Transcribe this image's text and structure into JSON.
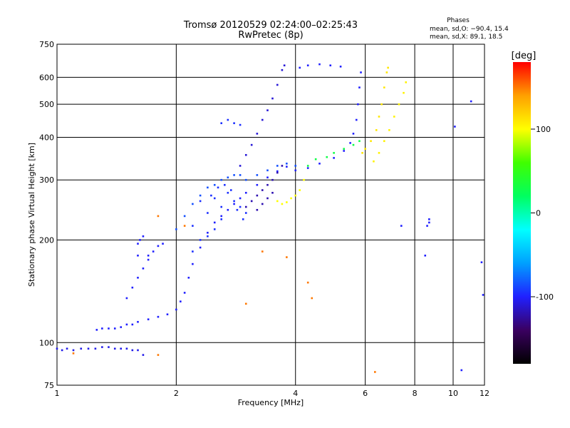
{
  "chart_data": {
    "type": "scatter",
    "title": "Tromsø 20120529 02:24:00–02:25:43",
    "subtitle": "RwPretec (8p)",
    "xlabel": "Frequency [MHz]",
    "ylabel": "Stationary phase Virtual Height [km]",
    "x_scale": "log",
    "y_scale": "log",
    "xlim": [
      1,
      12
    ],
    "ylim": [
      75,
      750
    ],
    "x_ticks": [
      1,
      2,
      4,
      6,
      8,
      10,
      12
    ],
    "y_ticks": [
      75,
      100,
      200,
      300,
      400,
      500,
      600,
      750
    ],
    "grid": true,
    "phases_header": "Phases",
    "phases_lines": [
      "mean, sd,O: −90.4, 15.4",
      "mean, sd,X:  89.1, 18.5"
    ],
    "colorbar": {
      "label": "[deg]",
      "range": [
        -180,
        180
      ],
      "ticks": [
        100,
        0,
        -100
      ],
      "colors": [
        "#000000",
        "#3a0060",
        "#2020ff",
        "#00a0ff",
        "#00ffff",
        "#00ff60",
        "#40ff00",
        "#ffff00",
        "#ffa000",
        "#ff0000"
      ]
    },
    "series": [
      {
        "values": [
          [
            1.0,
            96
          ],
          [
            1.03,
            95
          ],
          [
            1.06,
            96
          ],
          [
            1.1,
            95
          ],
          [
            1.15,
            96
          ],
          [
            1.2,
            96
          ],
          [
            1.25,
            96
          ],
          [
            1.3,
            97
          ],
          [
            1.35,
            97
          ],
          [
            1.4,
            96
          ],
          [
            1.45,
            96
          ],
          [
            1.5,
            96
          ],
          [
            1.55,
            95
          ],
          [
            1.6,
            95
          ],
          [
            1.65,
            92
          ]
        ],
        "phase": -105
      },
      {
        "values": [
          [
            1.26,
            109
          ],
          [
            1.3,
            110
          ],
          [
            1.35,
            110
          ],
          [
            1.4,
            110
          ],
          [
            1.45,
            111
          ],
          [
            1.5,
            113
          ],
          [
            1.55,
            113
          ],
          [
            1.6,
            115
          ],
          [
            1.7,
            117
          ],
          [
            1.8,
            119
          ],
          [
            1.9,
            121
          ],
          [
            2.0,
            125
          ],
          [
            2.05,
            132
          ],
          [
            2.1,
            140
          ],
          [
            2.15,
            155
          ],
          [
            2.2,
            170
          ],
          [
            2.3,
            190
          ],
          [
            2.4,
            210
          ],
          [
            2.5,
            225
          ],
          [
            2.6,
            235
          ],
          [
            2.7,
            245
          ],
          [
            2.8,
            255
          ],
          [
            2.9,
            265
          ],
          [
            3.0,
            275
          ],
          [
            3.2,
            290
          ],
          [
            3.4,
            305
          ],
          [
            3.6,
            318
          ],
          [
            3.8,
            328
          ],
          [
            4.0,
            320
          ],
          [
            4.3,
            325
          ],
          [
            4.6,
            335
          ],
          [
            5.0,
            348
          ],
          [
            5.3,
            365
          ],
          [
            5.5,
            385
          ],
          [
            5.6,
            410
          ],
          [
            5.7,
            450
          ],
          [
            5.75,
            500
          ],
          [
            5.8,
            560
          ],
          [
            5.85,
            620
          ]
        ],
        "phase": -100
      },
      {
        "values": [
          [
            1.5,
            135
          ],
          [
            1.55,
            145
          ],
          [
            1.6,
            155
          ],
          [
            1.65,
            165
          ],
          [
            1.7,
            175
          ],
          [
            1.7,
            180
          ],
          [
            1.75,
            185
          ],
          [
            1.8,
            192
          ],
          [
            1.85,
            195
          ]
        ],
        "phase": -100
      },
      {
        "values": [
          [
            1.6,
            180
          ],
          [
            1.6,
            195
          ],
          [
            1.62,
            200
          ],
          [
            1.65,
            205
          ]
        ],
        "phase": -100
      },
      {
        "values": [
          [
            2.0,
            215
          ],
          [
            2.1,
            235
          ],
          [
            2.2,
            255
          ],
          [
            2.3,
            270
          ],
          [
            2.4,
            285
          ],
          [
            2.5,
            290
          ],
          [
            2.6,
            300
          ],
          [
            2.7,
            305
          ],
          [
            2.8,
            310
          ],
          [
            2.9,
            310
          ],
          [
            3.0,
            300
          ],
          [
            3.2,
            310
          ],
          [
            3.4,
            320
          ],
          [
            3.6,
            330
          ],
          [
            3.8,
            335
          ],
          [
            4.0,
            330
          ]
        ],
        "phase": -85
      },
      {
        "values": [
          [
            2.2,
            220
          ],
          [
            2.3,
            260
          ],
          [
            2.4,
            240
          ],
          [
            2.5,
            265
          ],
          [
            2.6,
            250
          ],
          [
            2.7,
            275
          ],
          [
            2.8,
            260
          ],
          [
            2.9,
            250
          ],
          [
            3.0,
            240
          ],
          [
            2.3,
            200
          ],
          [
            2.4,
            205
          ],
          [
            2.5,
            215
          ],
          [
            2.6,
            230
          ],
          [
            2.2,
            185
          ],
          [
            2.45,
            270
          ],
          [
            2.55,
            285
          ],
          [
            2.65,
            290
          ],
          [
            2.75,
            280
          ],
          [
            2.85,
            245
          ],
          [
            2.95,
            230
          ]
        ],
        "phase": -95
      },
      {
        "values": [
          [
            3.0,
            250
          ],
          [
            3.1,
            260
          ],
          [
            3.2,
            270
          ],
          [
            3.3,
            280
          ],
          [
            3.4,
            290
          ],
          [
            3.5,
            300
          ],
          [
            3.6,
            315
          ],
          [
            3.7,
            330
          ],
          [
            3.2,
            245
          ],
          [
            3.3,
            255
          ],
          [
            3.4,
            265
          ],
          [
            3.5,
            275
          ]
        ],
        "phase": -120
      },
      {
        "values": [
          [
            2.9,
            330
          ],
          [
            3.0,
            355
          ],
          [
            3.1,
            380
          ],
          [
            3.2,
            410
          ],
          [
            3.3,
            450
          ],
          [
            3.4,
            480
          ],
          [
            3.5,
            520
          ],
          [
            3.6,
            570
          ],
          [
            3.7,
            630
          ],
          [
            3.75,
            650
          ]
        ],
        "phase": -110
      },
      {
        "values": [
          [
            3.6,
            260
          ],
          [
            3.7,
            255
          ],
          [
            3.8,
            258
          ],
          [
            3.9,
            265
          ],
          [
            4.0,
            270
          ],
          [
            4.1,
            280
          ],
          [
            4.2,
            300
          ]
        ],
        "phase": 100
      },
      {
        "values": [
          [
            4.3,
            330
          ],
          [
            4.5,
            345
          ],
          [
            4.8,
            350
          ],
          [
            5.0,
            360
          ],
          [
            5.3,
            370
          ],
          [
            5.6,
            380
          ],
          [
            5.8,
            390
          ]
        ],
        "phase": 30
      },
      {
        "values": [
          [
            5.9,
            360
          ],
          [
            6.0,
            370
          ],
          [
            6.2,
            390
          ],
          [
            6.4,
            420
          ],
          [
            6.5,
            460
          ],
          [
            6.6,
            500
          ],
          [
            6.7,
            560
          ],
          [
            6.8,
            620
          ],
          [
            6.85,
            640
          ]
        ],
        "phase": 110
      },
      {
        "values": [
          [
            6.3,
            340
          ],
          [
            6.5,
            360
          ],
          [
            6.7,
            390
          ],
          [
            6.9,
            420
          ],
          [
            7.1,
            460
          ],
          [
            7.3,
            500
          ],
          [
            7.5,
            540
          ],
          [
            7.6,
            580
          ]
        ],
        "phase": 105
      },
      {
        "values": [
          [
            2.6,
            440
          ],
          [
            2.7,
            450
          ],
          [
            2.8,
            440
          ],
          [
            2.9,
            435
          ]
        ],
        "phase": -95
      },
      {
        "values": [
          [
            4.1,
            640
          ],
          [
            4.3,
            650
          ],
          [
            4.6,
            655
          ],
          [
            4.9,
            650
          ],
          [
            5.2,
            645
          ]
        ],
        "phase": -100
      },
      {
        "values": [
          [
            8.7,
            230
          ],
          [
            8.7,
            225
          ],
          [
            8.6,
            220
          ],
          [
            7.4,
            220
          ],
          [
            8.5,
            180
          ],
          [
            10.5,
            83
          ],
          [
            11.8,
            172
          ],
          [
            11.9,
            138
          ],
          [
            11.1,
            510
          ],
          [
            10.1,
            430
          ]
        ],
        "phase": -100
      },
      {
        "values": [
          [
            6.35,
            82
          ],
          [
            4.3,
            150
          ],
          [
            4.4,
            135
          ],
          [
            3.3,
            185
          ],
          [
            3.8,
            178
          ],
          [
            1.8,
            235
          ],
          [
            1.1,
            93
          ],
          [
            1.8,
            92
          ],
          [
            3.0,
            130
          ],
          [
            2.1,
            220
          ]
        ],
        "phase": 150
      }
    ]
  }
}
